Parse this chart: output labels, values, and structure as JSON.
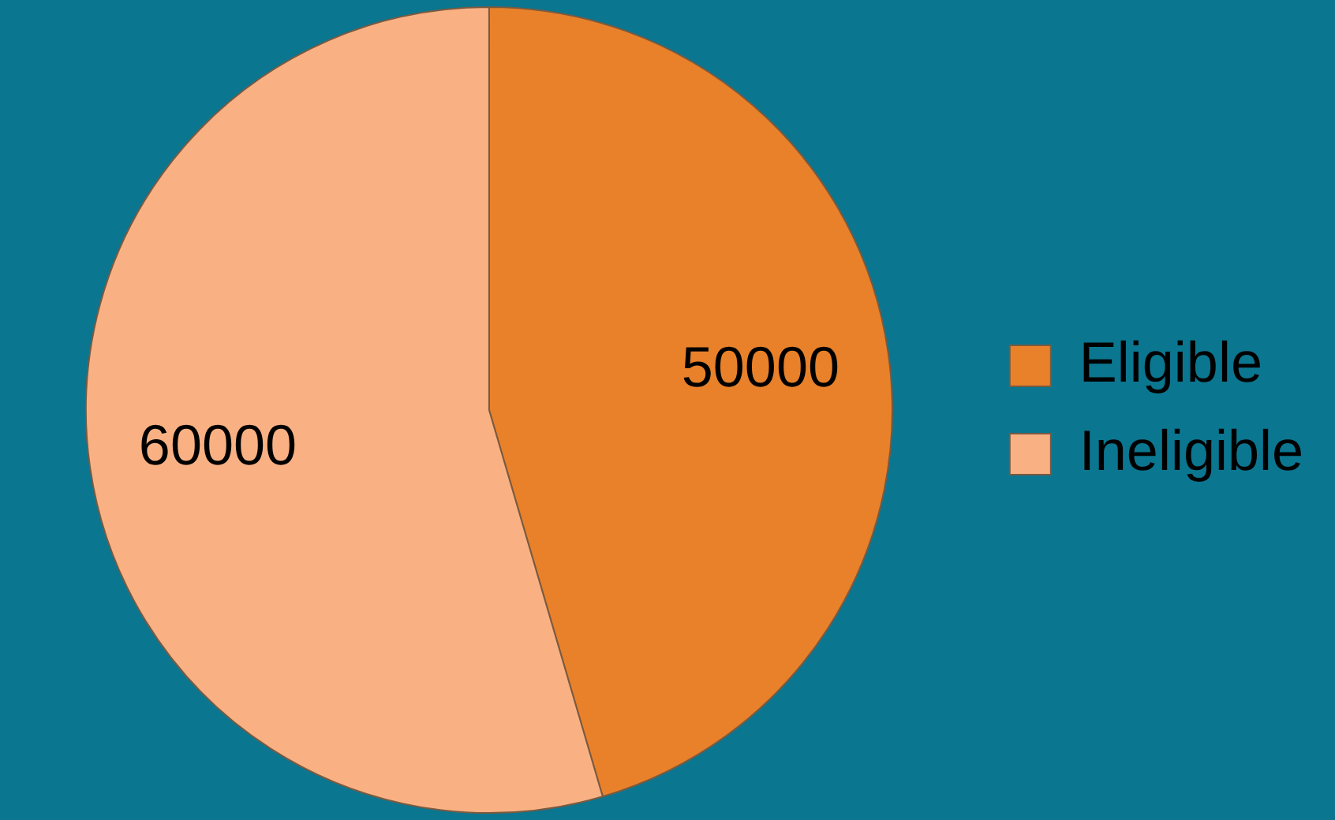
{
  "chart_data": {
    "type": "pie",
    "categories": [
      "Eligible",
      "Ineligible"
    ],
    "values": [
      50000,
      60000
    ],
    "colors": [
      "#e8812a",
      "#f9b184"
    ],
    "data_labels": true,
    "legend": "right"
  }
}
